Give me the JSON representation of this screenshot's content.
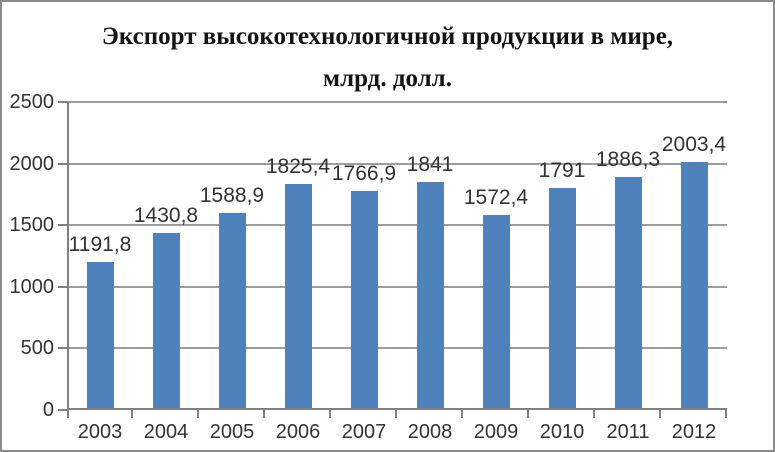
{
  "chart_data": {
    "type": "bar",
    "title": "Экспорт высокотехнологичной продукции в мире, млрд. долл.",
    "title_lines": [
      "Экспорт высокотехнологичной продукции в мире,",
      "млрд. долл."
    ],
    "categories": [
      "2003",
      "2004",
      "2005",
      "2006",
      "2007",
      "2008",
      "2009",
      "2010",
      "2011",
      "2012"
    ],
    "values": [
      1191.8,
      1430.8,
      1588.9,
      1825.4,
      1766.9,
      1841,
      1572.4,
      1791,
      1886.3,
      2003.4
    ],
    "value_labels": [
      "1191,8",
      "1430,8",
      "1588,9",
      "1825,4",
      "1766,9",
      "1841",
      "1572,4",
      "1791",
      "1886,3",
      "2003,4"
    ],
    "xlabel": "",
    "ylabel": "",
    "ylim": [
      0,
      2500
    ],
    "yticks": [
      0,
      500,
      1000,
      1500,
      2000,
      2500
    ],
    "grid": true,
    "legend": "none",
    "bar_color": "#4F81BD",
    "gridline_color": "#9D9D9D",
    "axis_color": "#808080",
    "label_color": "#333333",
    "title_color": "#141414",
    "border_color": "#8A8A8A"
  }
}
